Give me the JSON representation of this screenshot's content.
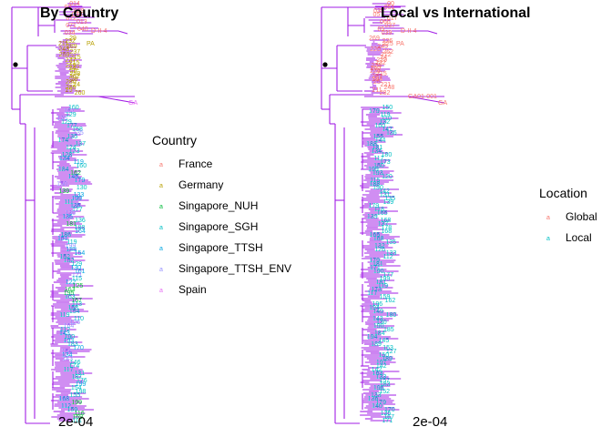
{
  "colors": {
    "branch": "#a21ee5",
    "France": "#F8766D",
    "Germany": "#B79F00",
    "Singapore_NUH": "#00BA38",
    "Singapore_SGH": "#00BFC4",
    "Singapore_TTSH": "#00A5E0",
    "Singapore_TTSH_ENV": "#9590FF",
    "Spain": "#E76BF3",
    "Global": "#F8766D",
    "Local": "#00BFC4"
  },
  "panels": [
    {
      "title": "By Country",
      "legend": {
        "title": "Country",
        "items": [
          {
            "label": "France",
            "color_key": "France"
          },
          {
            "label": "Germany",
            "color_key": "Germany"
          },
          {
            "label": "Singapore_NUH",
            "color_key": "Singapore_NUH"
          },
          {
            "label": "Singapore_SGH",
            "color_key": "Singapore_SGH"
          },
          {
            "label": "Singapore_TTSH",
            "color_key": "Singapore_TTSH"
          },
          {
            "label": "Singapore_TTSH_ENV",
            "color_key": "Singapore_TTSH_ENV"
          },
          {
            "label": "Spain",
            "color_key": "Spain"
          }
        ]
      },
      "scale_label": "2e-04",
      "visible_tip_labels": [
        {
          "text": "D-II-4",
          "color_key": "France"
        },
        {
          "text": "PA",
          "color_key": "Germany"
        },
        {
          "text": "GA",
          "color_key": "Spain"
        }
      ]
    },
    {
      "title": "Local vs International",
      "legend": {
        "title": "Location",
        "items": [
          {
            "label": "Global",
            "color_key": "Global"
          },
          {
            "label": "Local",
            "color_key": "Local"
          }
        ]
      },
      "scale_label": "2e-04",
      "visible_tip_labels": [
        {
          "text": "D-II-4",
          "color_key": "Global"
        },
        {
          "text": "PA",
          "color_key": "Global"
        },
        {
          "text": "GA",
          "color_key": "Global"
        },
        {
          "text": "GA01-001",
          "color_key": "Global"
        }
      ]
    }
  ]
}
